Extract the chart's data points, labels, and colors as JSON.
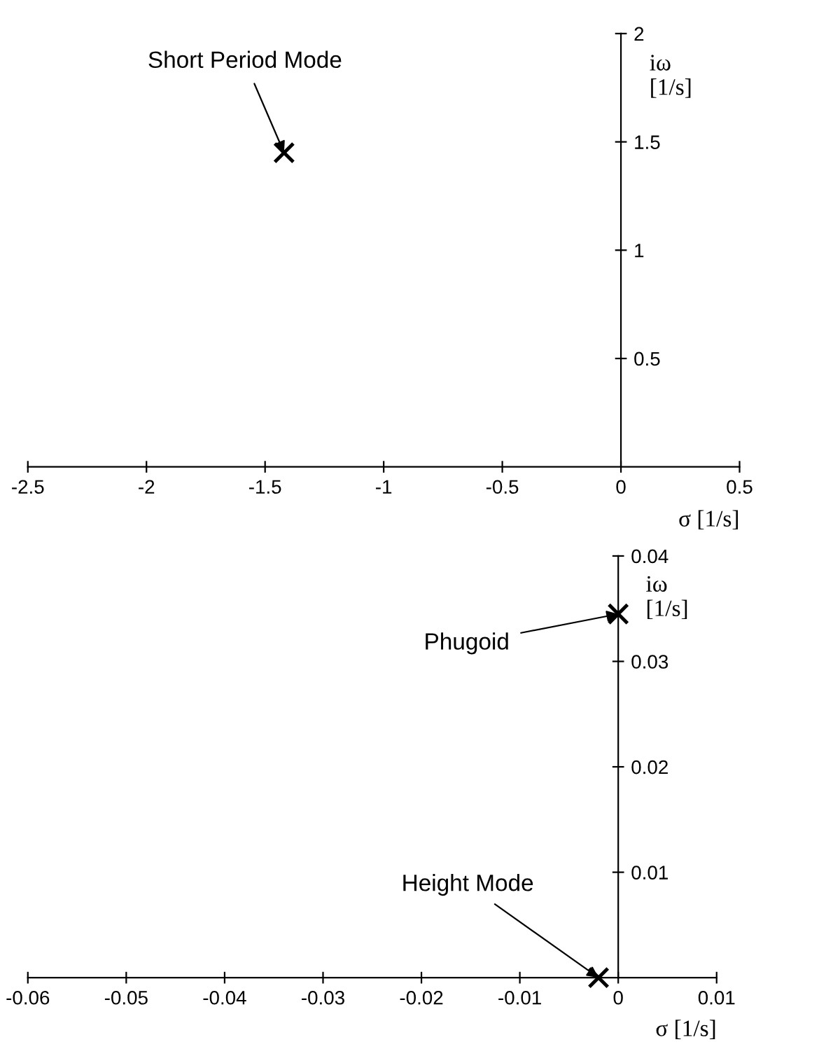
{
  "chart_data": [
    {
      "type": "scatter",
      "xlabel": "σ [1/s]",
      "ylabel": "iω\n[1/s]",
      "x": [
        -1.42
      ],
      "values": [
        1.45
      ],
      "color": "#000000",
      "marker": "cross",
      "xlim": [
        -2.5,
        0.5
      ],
      "xticks": [
        -2.5,
        -2,
        -1.5,
        -1,
        -0.5,
        0,
        0.5
      ],
      "ylim": [
        0,
        2
      ],
      "yticks": [
        0.5,
        1,
        1.5,
        2
      ],
      "grid": false,
      "legend": false,
      "annotations": [
        {
          "text": "Short Period Mode",
          "x": -1.42,
          "y": 1.45
        }
      ]
    },
    {
      "type": "scatter",
      "xlabel": "σ [1/s]",
      "ylabel": "iω\n[1/s]",
      "x": [
        0.0,
        -0.002
      ],
      "values": [
        0.0345,
        0.0
      ],
      "color": "#000000",
      "marker": "cross",
      "xlim": [
        -0.06,
        0.01
      ],
      "xticks": [
        -0.06,
        -0.05,
        -0.04,
        -0.03,
        -0.02,
        -0.01,
        0,
        0.01
      ],
      "ylim": [
        0,
        0.04
      ],
      "yticks": [
        0.01,
        0.02,
        0.03,
        0.04
      ],
      "grid": false,
      "legend": false,
      "annotations": [
        {
          "text": "Phugoid",
          "x": 0.0,
          "y": 0.0345
        },
        {
          "text": "Height Mode",
          "x": -0.002,
          "y": 0.0
        }
      ]
    }
  ]
}
